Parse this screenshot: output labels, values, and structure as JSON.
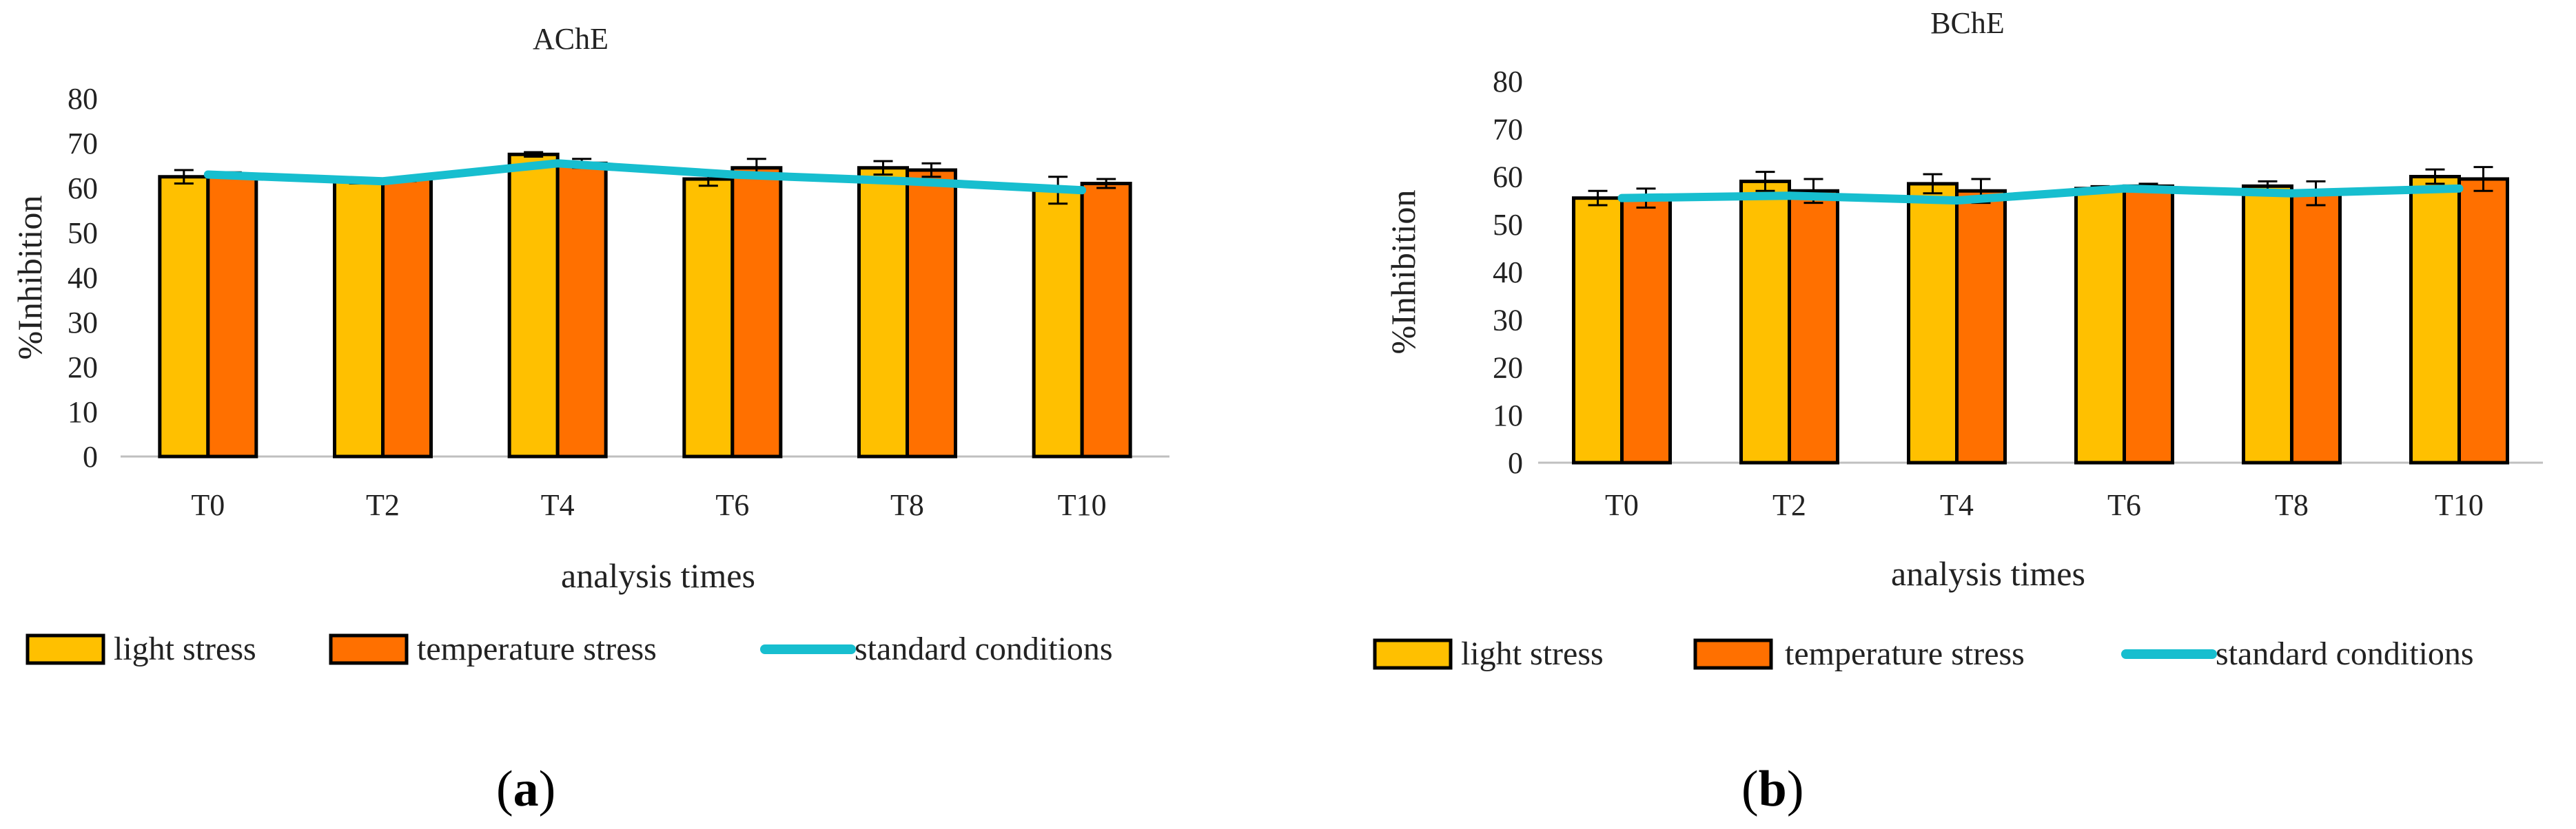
{
  "colors": {
    "light_stress": "#FFC000",
    "temperature_stress": "#FF7000",
    "standard_conditions": "#17BECF",
    "axis": "#BFBFBF",
    "bar_outline": "#000000"
  },
  "chart_data": [
    {
      "type": "bar",
      "title": "AChE",
      "panel_label": "(a)",
      "panel_letter": "a",
      "xlabel": "analysis times",
      "ylabel": "%Inhibition",
      "ylim": [
        0,
        80
      ],
      "yticks": [
        0,
        10,
        20,
        30,
        40,
        50,
        60,
        70,
        80
      ],
      "ytick_labels": [
        "0",
        "10",
        "20",
        "30",
        "40",
        "50",
        "60",
        "70",
        "80"
      ],
      "categories": [
        "T0",
        "T2",
        "T4",
        "T6",
        "T8",
        "T10"
      ],
      "legend_position": "bottom",
      "series": [
        {
          "name": "light stress",
          "kind": "bar",
          "values": [
            62.5,
            61.5,
            67.5,
            62.0,
            64.5,
            59.5
          ],
          "errors": [
            1.5,
            0.5,
            0.5,
            1.5,
            1.5,
            3.0
          ]
        },
        {
          "name": "temperature stress",
          "kind": "bar",
          "values": [
            63.0,
            62.0,
            65.5,
            64.5,
            64.0,
            61.0
          ],
          "errors": [
            0.5,
            0.5,
            1.0,
            2.0,
            1.5,
            1.0
          ]
        },
        {
          "name": "standard conditions",
          "kind": "line",
          "values": [
            63.0,
            61.5,
            65.5,
            63.0,
            61.5,
            59.5
          ]
        }
      ]
    },
    {
      "type": "bar",
      "title": "BChE",
      "panel_label": "(b)",
      "panel_letter": "b",
      "xlabel": "analysis times",
      "ylabel": "%Inhibition",
      "ylim": [
        0,
        80
      ],
      "yticks": [
        0,
        10,
        20,
        30,
        40,
        50,
        60,
        70,
        80
      ],
      "ytick_labels": [
        "0",
        "10",
        "20",
        "30",
        "40",
        "50",
        "60",
        "70",
        "80"
      ],
      "categories": [
        "T0",
        "T2",
        "T4",
        "T6",
        "T8",
        "T10"
      ],
      "legend_position": "bottom",
      "series": [
        {
          "name": "light stress",
          "kind": "bar",
          "values": [
            55.5,
            59.0,
            58.5,
            57.5,
            58.0,
            60.0
          ],
          "errors": [
            1.5,
            2.0,
            2.0,
            0.5,
            1.0,
            1.5
          ]
        },
        {
          "name": "temperature stress",
          "kind": "bar",
          "values": [
            55.5,
            57.0,
            57.0,
            58.0,
            56.5,
            59.5
          ],
          "errors": [
            2.0,
            2.5,
            2.5,
            0.5,
            2.5,
            2.5
          ]
        },
        {
          "name": "standard conditions",
          "kind": "line",
          "values": [
            55.5,
            56.0,
            55.0,
            57.5,
            56.5,
            57.5
          ]
        }
      ]
    }
  ]
}
